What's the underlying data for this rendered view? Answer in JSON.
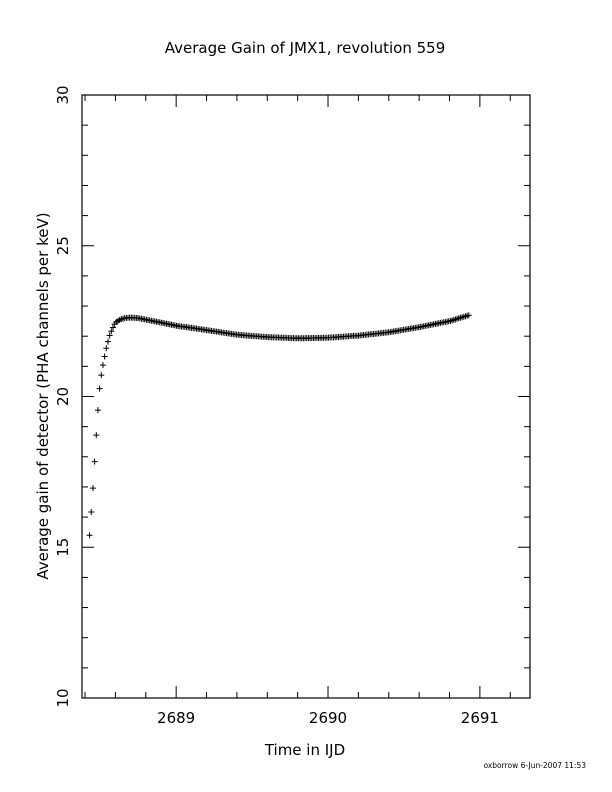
{
  "chart_data": {
    "type": "scatter",
    "title": "Average Gain of JMX1, revolution 559",
    "xlabel": "Time in IJD",
    "ylabel": "Average gain of detector (PHA channels per keV)",
    "xlim": [
      2688.38,
      2691.33
    ],
    "ylim": [
      10,
      30
    ],
    "xticks_major": [
      2689,
      2690,
      2691
    ],
    "yticks_major": [
      10,
      15,
      20,
      25,
      30
    ],
    "marker": "plus",
    "grid": false,
    "footer": "oxborrow   6-Jun-2007 11:53",
    "anchors": {
      "x": [
        2688.43,
        2688.44,
        2688.45,
        2688.46,
        2688.47,
        2688.48,
        2688.49,
        2688.5,
        2688.52,
        2688.54,
        2688.56,
        2688.58,
        2688.6,
        2688.63,
        2688.66,
        2688.7,
        2688.75,
        2688.85,
        2689.0,
        2689.2,
        2689.4,
        2689.6,
        2689.8,
        2690.0,
        2690.2,
        2690.4,
        2690.6,
        2690.8,
        2690.93
      ],
      "y": [
        15.4,
        16.1,
        16.8,
        17.6,
        18.4,
        19.2,
        19.9,
        20.5,
        21.1,
        21.6,
        22.0,
        22.25,
        22.45,
        22.55,
        22.6,
        22.62,
        22.6,
        22.5,
        22.35,
        22.2,
        22.05,
        21.97,
        21.93,
        21.95,
        22.02,
        22.13,
        22.3,
        22.5,
        22.7
      ]
    },
    "sample_step": 0.011
  }
}
